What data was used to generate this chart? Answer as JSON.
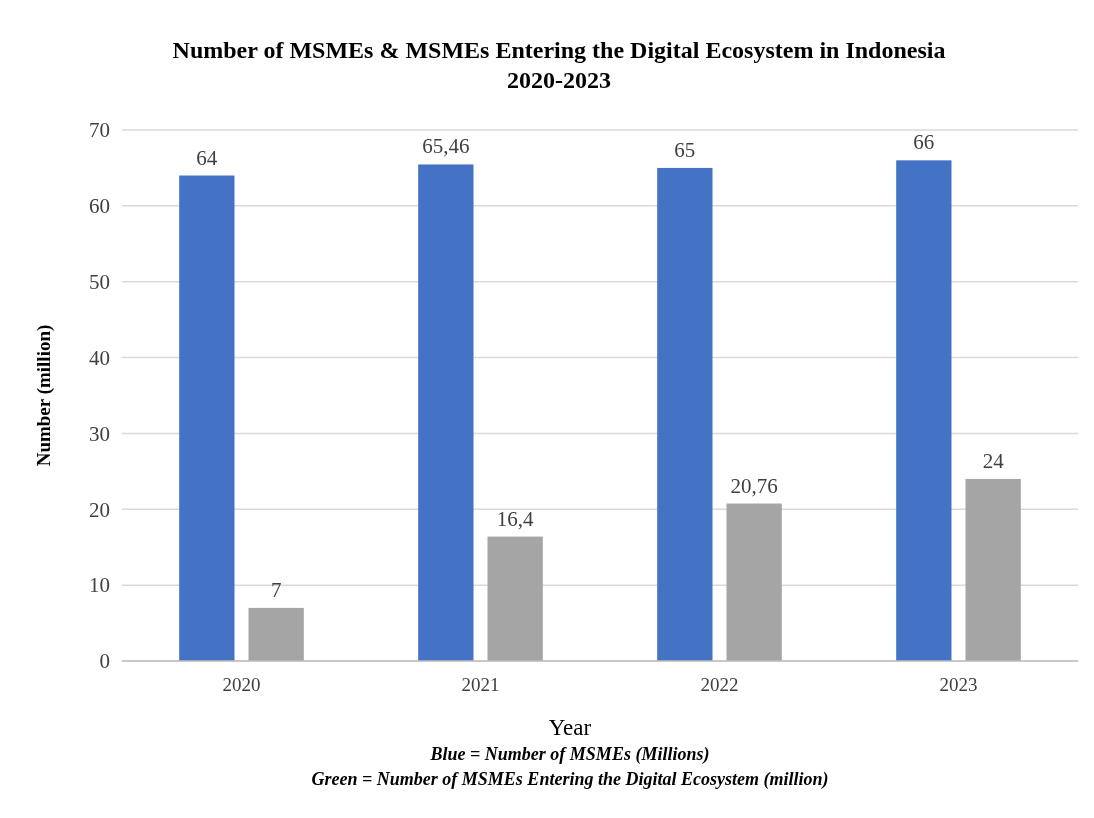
{
  "chart_data": {
    "type": "bar",
    "title": "Number of MSMEs & MSMEs Entering the Digital Ecosystem in Indonesia 2020-2023",
    "xlabel": "Year",
    "ylabel": "Number (million)",
    "categories": [
      "2020",
      "2021",
      "2022",
      "2023"
    ],
    "series": [
      {
        "color": "#4472c4",
        "values": [
          64,
          65.46,
          65,
          66
        ],
        "value_labels": [
          "64",
          "65,46",
          "65",
          "66"
        ]
      },
      {
        "color": "#a5a5a5",
        "values": [
          7,
          16.4,
          20.76,
          24
        ],
        "value_labels": [
          "7",
          "16,4",
          "20,76",
          "24"
        ]
      }
    ],
    "ylim": [
      0,
      70
    ],
    "yticks": [
      0,
      10,
      20,
      30,
      40,
      50,
      60,
      70
    ],
    "grid": "y",
    "annotations": [
      "Blue = Number of MSMEs (Millions)",
      "Green = Number of MSMEs Entering the Digital Ecosystem (million)"
    ]
  }
}
